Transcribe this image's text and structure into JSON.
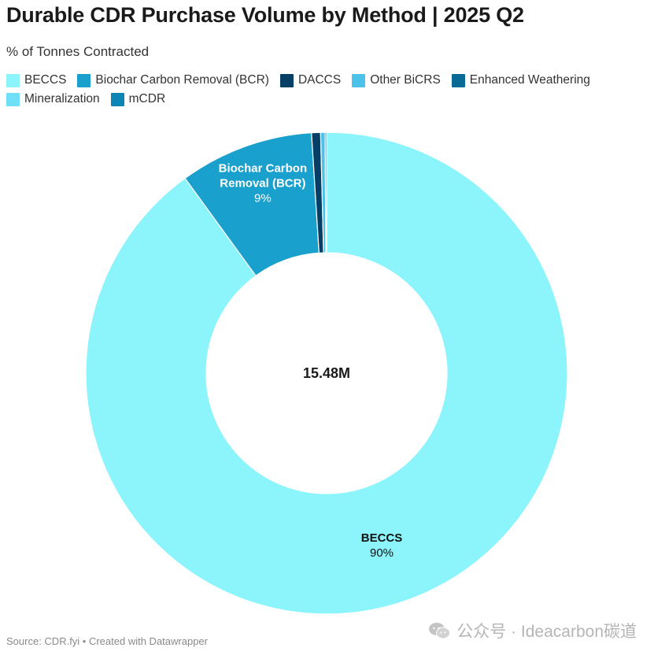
{
  "title": "Durable CDR Purchase Volume by Method | 2025 Q2",
  "subtitle": "% of Tonnes Contracted",
  "source": "Source: CDR.fyi • Created with Datawrapper",
  "watermark": "公众号 · Ideacarbon碳道",
  "center_label": "15.48M",
  "colors": {
    "BECCS": "#8cf4fb",
    "Biochar Carbon Removal (BCR)": "#1aa0cc",
    "DACCS": "#063f66",
    "Other BiCRS": "#4cc1e9",
    "Enhanced Weathering": "#0a6a96",
    "Mineralization": "#6fe0f7",
    "mCDR": "#0b86b4"
  },
  "legend": [
    "BECCS",
    "Biochar Carbon Removal (BCR)",
    "DACCS",
    "Other BiCRS",
    "Enhanced Weathering",
    "Mineralization",
    "mCDR"
  ],
  "chart_data": {
    "type": "pie",
    "donut": true,
    "title": "Durable CDR Purchase Volume by Method | 2025 Q2",
    "subtitle": "% of Tonnes Contracted",
    "center_label": "15.48M",
    "legend_position": "top",
    "slices": [
      {
        "label": "BECCS",
        "value": 90,
        "display_label": "BECCS",
        "display_value": "90%"
      },
      {
        "label": "Biochar Carbon Removal (BCR)",
        "value": 9,
        "display_label": "Biochar Carbon Removal (BCR)",
        "display_value": "9%"
      },
      {
        "label": "DACCS",
        "value": 0.6
      },
      {
        "label": "Other BiCRS",
        "value": 0.3
      },
      {
        "label": "Enhanced Weathering",
        "value": 0.1
      }
    ]
  }
}
